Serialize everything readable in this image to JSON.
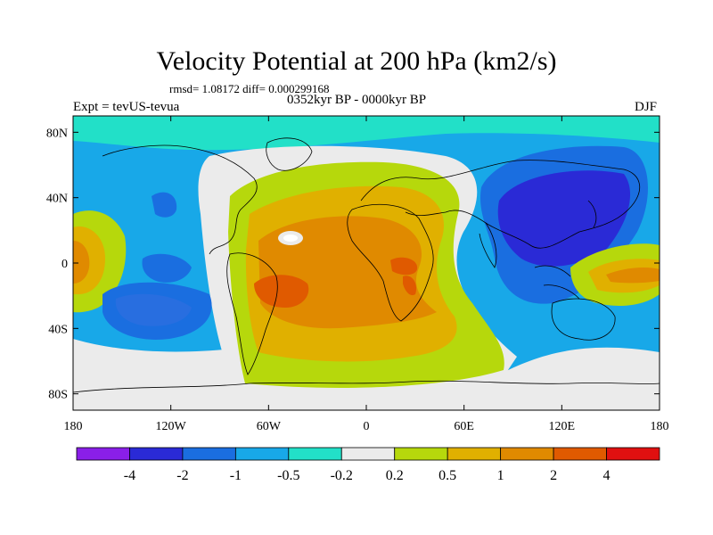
{
  "title": "Velocity Potential at 200 hPa (km2/s)",
  "stats": "rmsd= 1.08172 diff= 0.000299168",
  "experiment": "Expt = tevUS-tevua",
  "period": "0352kyr BP - 0000kyr BP",
  "season": "DJF",
  "axes": {
    "x_ticks": [
      "180",
      "120W",
      "60W",
      "0",
      "60E",
      "120E",
      "180"
    ],
    "y_ticks": [
      "80N",
      "40N",
      "0",
      "40S",
      "80S"
    ]
  },
  "colorbar": {
    "colors": [
      "#8a1fe8",
      "#2a2ad6",
      "#1a6ee0",
      "#18a8e8",
      "#22e0c8",
      "#ebebeb",
      "#b6d80c",
      "#e0b000",
      "#e08a00",
      "#e05a00",
      "#e01010"
    ],
    "labels": [
      "-4",
      "-2",
      "-1",
      "-0.5",
      "-0.2",
      "0.2",
      "0.5",
      "1",
      "2",
      "4"
    ]
  }
}
